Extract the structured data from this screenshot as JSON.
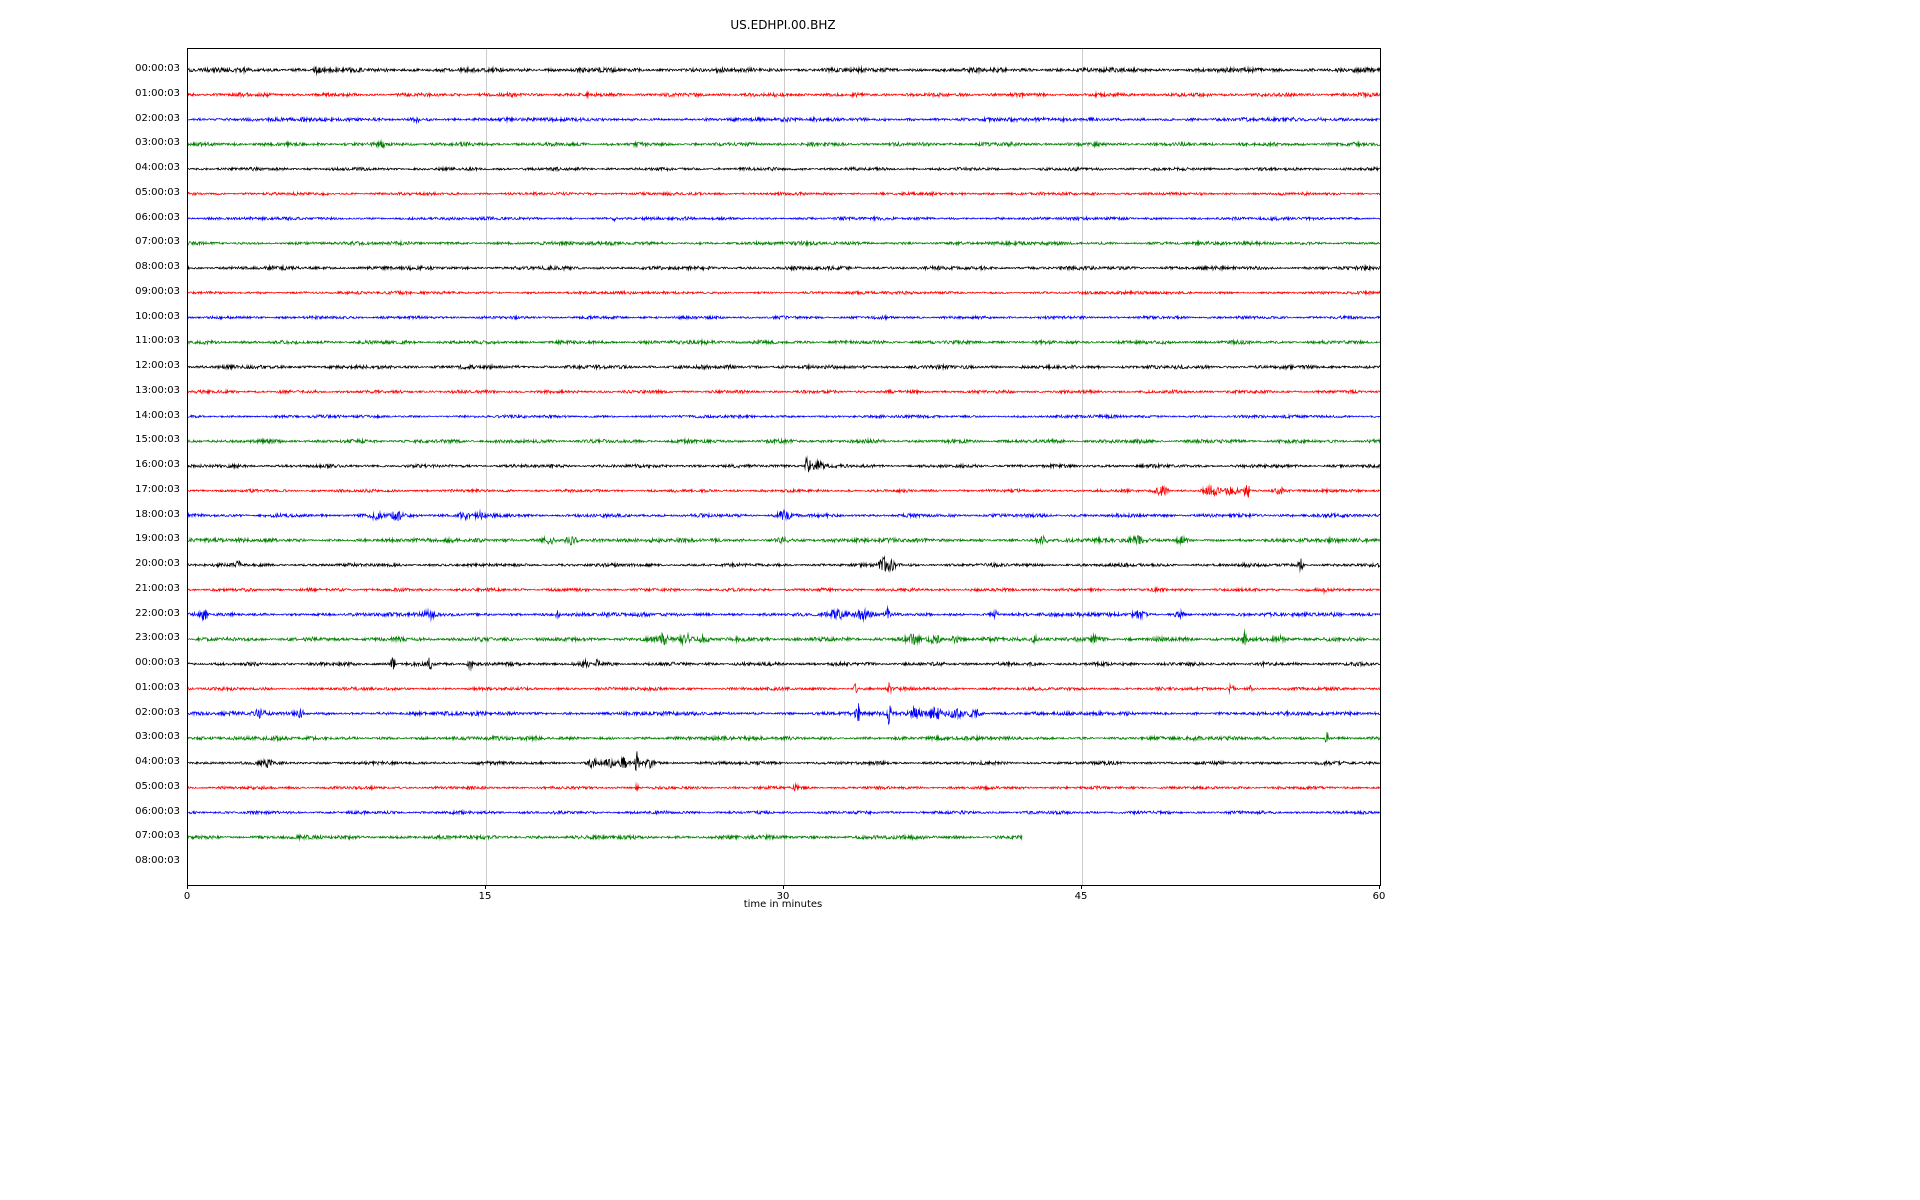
{
  "chart_data": {
    "type": "line",
    "subtype": "seismogram-dayplot",
    "title": "US.EDHPI.00.BHZ",
    "xlabel": "time in minutes",
    "xlim": [
      0,
      60
    ],
    "xticks": [
      0,
      15,
      30,
      45,
      60
    ],
    "grid": true,
    "grid_color": "#cccccc",
    "colors_cycle": [
      "#000000",
      "#ff0000",
      "#0000ff",
      "#008000"
    ],
    "rows": [
      {
        "label": "00:00:03",
        "color": "#000000",
        "end_minute": 60,
        "noise_amp": 2.2,
        "events": [
          {
            "m": 6.5,
            "a": 3,
            "w": 0.15
          }
        ]
      },
      {
        "label": "01:00:03",
        "color": "#ff0000",
        "end_minute": 60,
        "noise_amp": 1.9,
        "events": []
      },
      {
        "label": "02:00:03",
        "color": "#0000ff",
        "end_minute": 60,
        "noise_amp": 1.9,
        "events": [
          {
            "m": 11.5,
            "a": 2.5,
            "w": 0.3
          }
        ]
      },
      {
        "label": "03:00:03",
        "color": "#008000",
        "end_minute": 60,
        "noise_amp": 1.9,
        "events": [
          {
            "m": 9.8,
            "a": 2.5,
            "w": 0.1
          }
        ]
      },
      {
        "label": "04:00:03",
        "color": "#000000",
        "end_minute": 60,
        "noise_amp": 1.6,
        "events": []
      },
      {
        "label": "05:00:03",
        "color": "#ff0000",
        "end_minute": 60,
        "noise_amp": 1.5,
        "events": []
      },
      {
        "label": "06:00:03",
        "color": "#0000ff",
        "end_minute": 60,
        "noise_amp": 1.6,
        "events": [
          {
            "m": 21.5,
            "a": 2.5,
            "w": 0.08
          }
        ]
      },
      {
        "label": "07:00:03",
        "color": "#008000",
        "end_minute": 60,
        "noise_amp": 1.8,
        "events": []
      },
      {
        "label": "08:00:03",
        "color": "#000000",
        "end_minute": 60,
        "noise_amp": 1.9,
        "events": []
      },
      {
        "label": "09:00:03",
        "color": "#ff0000",
        "end_minute": 60,
        "noise_amp": 1.5,
        "events": []
      },
      {
        "label": "10:00:03",
        "color": "#0000ff",
        "end_minute": 60,
        "noise_amp": 1.5,
        "events": []
      },
      {
        "label": "11:00:03",
        "color": "#008000",
        "end_minute": 60,
        "noise_amp": 1.8,
        "events": [
          {
            "m": 26,
            "a": 1.5,
            "w": 0.5
          }
        ]
      },
      {
        "label": "12:00:03",
        "color": "#000000",
        "end_minute": 60,
        "noise_amp": 1.9,
        "events": []
      },
      {
        "label": "13:00:03",
        "color": "#ff0000",
        "end_minute": 60,
        "noise_amp": 1.6,
        "events": []
      },
      {
        "label": "14:00:03",
        "color": "#0000ff",
        "end_minute": 60,
        "noise_amp": 1.5,
        "events": []
      },
      {
        "label": "15:00:03",
        "color": "#008000",
        "end_minute": 60,
        "noise_amp": 1.9,
        "events": []
      },
      {
        "label": "16:00:03",
        "color": "#000000",
        "end_minute": 60,
        "noise_amp": 1.7,
        "events": [
          {
            "m": 31.2,
            "a": 13,
            "w": 0.12
          },
          {
            "m": 31.7,
            "a": 6,
            "w": 0.25
          }
        ]
      },
      {
        "label": "17:00:03",
        "color": "#ff0000",
        "end_minute": 60,
        "noise_amp": 1.5,
        "events": [
          {
            "m": 49,
            "a": 5,
            "w": 0.3
          },
          {
            "m": 51.5,
            "a": 4,
            "w": 0.4
          },
          {
            "m": 52.5,
            "a": 4,
            "w": 0.3
          },
          {
            "m": 53.3,
            "a": 9,
            "w": 0.12
          },
          {
            "m": 55,
            "a": 4,
            "w": 0.3
          }
        ]
      },
      {
        "label": "18:00:03",
        "color": "#0000ff",
        "end_minute": 60,
        "noise_amp": 1.8,
        "events": [
          {
            "m": 9.5,
            "a": 3.5,
            "w": 0.3
          },
          {
            "m": 10.5,
            "a": 4,
            "w": 0.25
          },
          {
            "m": 13.9,
            "a": 3.5,
            "w": 0.3
          },
          {
            "m": 14.6,
            "a": 3.5,
            "w": 0.2
          },
          {
            "m": 30,
            "a": 4,
            "w": 0.35
          }
        ]
      },
      {
        "label": "19:00:03",
        "color": "#008000",
        "end_minute": 60,
        "noise_amp": 2.0,
        "events": [
          {
            "m": 18.2,
            "a": 3.5,
            "w": 0.35
          },
          {
            "m": 19.3,
            "a": 3.5,
            "w": 0.3
          },
          {
            "m": 30,
            "a": 2.5,
            "w": 0.4
          },
          {
            "m": 43,
            "a": 3.5,
            "w": 0.25
          },
          {
            "m": 47.8,
            "a": 3.5,
            "w": 0.3
          },
          {
            "m": 50,
            "a": 3,
            "w": 0.25
          }
        ]
      },
      {
        "label": "20:00:03",
        "color": "#000000",
        "end_minute": 60,
        "noise_amp": 1.7,
        "events": [
          {
            "m": 2.5,
            "a": 7,
            "w": 0.1
          },
          {
            "m": 35,
            "a": 7,
            "w": 0.2
          },
          {
            "m": 35.4,
            "a": 5,
            "w": 0.2
          },
          {
            "m": 56,
            "a": 6,
            "w": 0.12
          }
        ]
      },
      {
        "label": "21:00:03",
        "color": "#ff0000",
        "end_minute": 60,
        "noise_amp": 1.6,
        "events": [
          {
            "m": 57.2,
            "a": 4.5,
            "w": 0.1
          }
        ]
      },
      {
        "label": "22:00:03",
        "color": "#0000ff",
        "end_minute": 60,
        "noise_amp": 1.9,
        "events": [
          {
            "m": 0.8,
            "a": 4,
            "w": 0.25
          },
          {
            "m": 12.2,
            "a": 3.5,
            "w": 0.3
          },
          {
            "m": 18.6,
            "a": 6,
            "w": 0.07
          },
          {
            "m": 32.7,
            "a": 3.5,
            "w": 0.4
          },
          {
            "m": 34,
            "a": 4,
            "w": 0.3
          },
          {
            "m": 35.2,
            "a": 7,
            "w": 0.08
          },
          {
            "m": 40.6,
            "a": 4,
            "w": 0.15
          },
          {
            "m": 47.8,
            "a": 3,
            "w": 0.3
          },
          {
            "m": 50,
            "a": 2.5,
            "w": 0.3
          }
        ]
      },
      {
        "label": "23:00:03",
        "color": "#008000",
        "end_minute": 60,
        "noise_amp": 2.1,
        "events": [
          {
            "m": 23.9,
            "a": 4.5,
            "w": 0.3
          },
          {
            "m": 25.1,
            "a": 5,
            "w": 0.3
          },
          {
            "m": 25.9,
            "a": 4,
            "w": 0.25
          },
          {
            "m": 36.5,
            "a": 3.5,
            "w": 0.3
          },
          {
            "m": 37.6,
            "a": 3.5,
            "w": 0.3
          },
          {
            "m": 38.6,
            "a": 3,
            "w": 0.25
          },
          {
            "m": 42.6,
            "a": 3.5,
            "w": 0.2
          },
          {
            "m": 45.6,
            "a": 3.5,
            "w": 0.15
          },
          {
            "m": 53.2,
            "a": 7,
            "w": 0.1
          },
          {
            "m": 55,
            "a": 2.5,
            "w": 0.3
          }
        ]
      },
      {
        "label": "00:00:03",
        "color": "#000000",
        "end_minute": 60,
        "noise_amp": 1.8,
        "events": [
          {
            "m": 10.3,
            "a": 5,
            "w": 0.12
          },
          {
            "m": 12.2,
            "a": 7,
            "w": 0.12
          },
          {
            "m": 14.2,
            "a": 4,
            "w": 0.15
          },
          {
            "m": 20,
            "a": 5,
            "w": 0.15
          },
          {
            "m": 20.6,
            "a": 4,
            "w": 0.12
          }
        ]
      },
      {
        "label": "01:00:03",
        "color": "#ff0000",
        "end_minute": 60,
        "noise_amp": 1.6,
        "events": [
          {
            "m": 33.6,
            "a": 8,
            "w": 0.08
          },
          {
            "m": 35.3,
            "a": 8,
            "w": 0.08
          },
          {
            "m": 52.5,
            "a": 4,
            "w": 0.15
          },
          {
            "m": 53.5,
            "a": 2.5,
            "w": 0.2
          }
        ]
      },
      {
        "label": "02:00:03",
        "color": "#0000ff",
        "end_minute": 60,
        "noise_amp": 1.9,
        "events": [
          {
            "m": 3.6,
            "a": 3.5,
            "w": 0.25
          },
          {
            "m": 5.6,
            "a": 3.5,
            "w": 0.25
          },
          {
            "m": 33.7,
            "a": 11,
            "w": 0.1
          },
          {
            "m": 35.3,
            "a": 12,
            "w": 0.1
          },
          {
            "m": 36.6,
            "a": 5,
            "w": 0.3
          },
          {
            "m": 37.6,
            "a": 5.5,
            "w": 0.4
          },
          {
            "m": 38.7,
            "a": 5,
            "w": 0.35
          },
          {
            "m": 39.6,
            "a": 4,
            "w": 0.3
          }
        ]
      },
      {
        "label": "03:00:03",
        "color": "#008000",
        "end_minute": 60,
        "noise_amp": 1.9,
        "events": [
          {
            "m": 57.3,
            "a": 7,
            "w": 0.1
          }
        ]
      },
      {
        "label": "04:00:03",
        "color": "#000000",
        "end_minute": 60,
        "noise_amp": 1.7,
        "events": [
          {
            "m": 4,
            "a": 2.8,
            "w": 0.2
          },
          {
            "m": 20.4,
            "a": 4,
            "w": 0.25
          },
          {
            "m": 21.2,
            "a": 4,
            "w": 0.2
          },
          {
            "m": 21.9,
            "a": 5,
            "w": 0.2
          },
          {
            "m": 22.6,
            "a": 11,
            "w": 0.1
          },
          {
            "m": 23.2,
            "a": 4,
            "w": 0.2
          }
        ]
      },
      {
        "label": "05:00:03",
        "color": "#ff0000",
        "end_minute": 60,
        "noise_amp": 1.5,
        "events": [
          {
            "m": 22.6,
            "a": 3.5,
            "w": 0.08
          },
          {
            "m": 30.6,
            "a": 2.5,
            "w": 0.15
          }
        ]
      },
      {
        "label": "06:00:03",
        "color": "#0000ff",
        "end_minute": 60,
        "noise_amp": 1.6,
        "events": []
      },
      {
        "label": "07:00:03",
        "color": "#008000",
        "end_minute": 42,
        "noise_amp": 2.0,
        "events": []
      },
      {
        "label": "08:00:03",
        "color": null,
        "end_minute": 0,
        "noise_amp": 0,
        "events": []
      }
    ]
  }
}
